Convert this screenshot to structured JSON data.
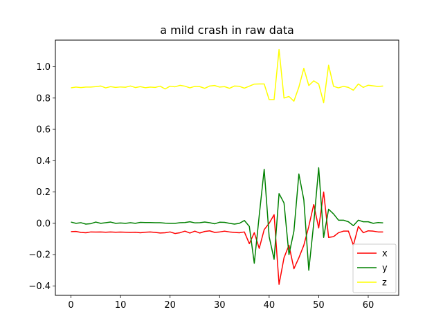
{
  "chart_data": {
    "type": "line",
    "title": "a mild crash in raw data",
    "xlabel": "",
    "ylabel": "",
    "xlim": [
      -3.15,
      66.15
    ],
    "ylim": [
      -0.46,
      1.17
    ],
    "xticks": [
      0,
      10,
      20,
      30,
      40,
      50,
      60
    ],
    "yticks": [
      -0.4,
      -0.2,
      0.0,
      0.2,
      0.4,
      0.6,
      0.8,
      1.0
    ],
    "ytick_labels": [
      "−0.4",
      "−0.2",
      "0.0",
      "0.2",
      "0.4",
      "0.6",
      "0.8",
      "1.0"
    ],
    "grid": false,
    "legend_position": "lower-right",
    "x": [
      0,
      1,
      2,
      3,
      4,
      5,
      6,
      7,
      8,
      9,
      10,
      11,
      12,
      13,
      14,
      15,
      16,
      17,
      18,
      19,
      20,
      21,
      22,
      23,
      24,
      25,
      26,
      27,
      28,
      29,
      30,
      31,
      32,
      33,
      34,
      35,
      36,
      37,
      38,
      39,
      40,
      41,
      42,
      43,
      44,
      45,
      46,
      47,
      48,
      49,
      50,
      51,
      52,
      53,
      54,
      55,
      56,
      57,
      58,
      59,
      60,
      61,
      62,
      63
    ],
    "series": [
      {
        "name": "x",
        "color": "#ff0000",
        "values": [
          -0.053,
          -0.052,
          -0.058,
          -0.06,
          -0.055,
          -0.056,
          -0.055,
          -0.057,
          -0.055,
          -0.057,
          -0.056,
          -0.057,
          -0.058,
          -0.057,
          -0.06,
          -0.057,
          -0.055,
          -0.058,
          -0.062,
          -0.06,
          -0.055,
          -0.065,
          -0.06,
          -0.05,
          -0.062,
          -0.05,
          -0.062,
          -0.052,
          -0.048,
          -0.058,
          -0.055,
          -0.05,
          -0.055,
          -0.058,
          -0.06,
          -0.055,
          -0.13,
          -0.06,
          -0.16,
          -0.04,
          0.0,
          0.055,
          -0.39,
          -0.22,
          -0.14,
          -0.29,
          -0.22,
          -0.14,
          -0.02,
          0.12,
          -0.03,
          0.2,
          -0.09,
          -0.085,
          -0.06,
          -0.05,
          -0.05,
          -0.14,
          -0.02,
          -0.06,
          -0.048,
          -0.05,
          -0.055,
          -0.055
        ]
      },
      {
        "name": "y",
        "color": "#008000",
        "values": [
          0.008,
          0.0,
          0.004,
          -0.005,
          -0.002,
          0.008,
          0.0,
          0.004,
          0.008,
          0.0,
          0.002,
          0.0,
          0.004,
          0.0,
          0.006,
          0.005,
          0.005,
          0.004,
          0.004,
          0.001,
          0.0,
          0.0,
          0.004,
          0.005,
          0.01,
          0.003,
          0.004,
          0.008,
          0.004,
          -0.003,
          0.007,
          0.006,
          0.0,
          -0.005,
          0.0,
          0.018,
          -0.02,
          -0.255,
          0.05,
          0.345,
          -0.085,
          -0.23,
          0.19,
          0.13,
          -0.2,
          -0.05,
          0.315,
          0.15,
          -0.3,
          0.0,
          0.355,
          -0.09,
          0.09,
          0.06,
          0.02,
          0.02,
          0.01,
          -0.015,
          0.02,
          0.01,
          0.01,
          0.0,
          0.005,
          0.003
        ]
      },
      {
        "name": "z",
        "color": "#ffff00",
        "values": [
          0.865,
          0.87,
          0.867,
          0.87,
          0.87,
          0.873,
          0.877,
          0.865,
          0.873,
          0.868,
          0.871,
          0.869,
          0.877,
          0.867,
          0.873,
          0.866,
          0.87,
          0.868,
          0.876,
          0.858,
          0.876,
          0.872,
          0.881,
          0.876,
          0.865,
          0.875,
          0.873,
          0.862,
          0.877,
          0.88,
          0.87,
          0.873,
          0.862,
          0.877,
          0.875,
          0.863,
          0.876,
          0.889,
          0.89,
          0.89,
          0.79,
          0.79,
          1.11,
          0.8,
          0.81,
          0.78,
          0.87,
          0.99,
          0.88,
          0.91,
          0.89,
          0.77,
          1.01,
          0.875,
          0.865,
          0.875,
          0.868,
          0.85,
          0.89,
          0.868,
          0.882,
          0.878,
          0.874,
          0.877
        ]
      }
    ]
  }
}
